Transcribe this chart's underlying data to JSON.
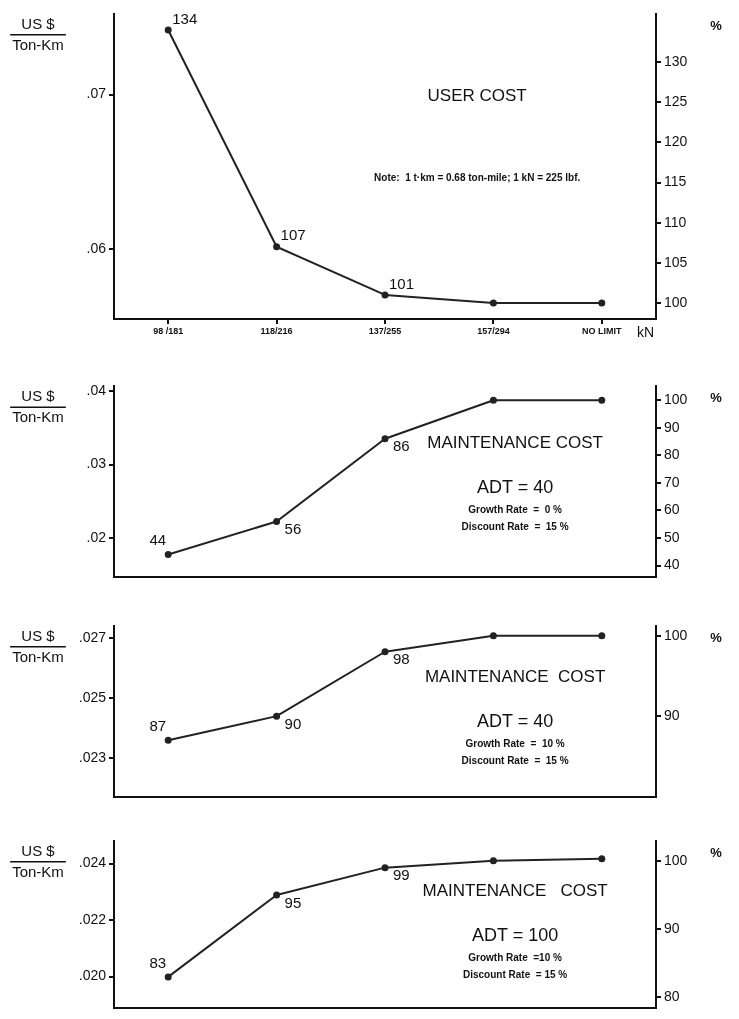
{
  "chart_data": [
    {
      "type": "line",
      "title": "USER COST",
      "ylabel": "US $\nTon-Km",
      "y2label": "%",
      "xlabel": "kN",
      "marker": "circle",
      "categories": [
        "98 /181",
        "118/216",
        "137/255",
        "157/294",
        "NO LIMIT"
      ],
      "series": [
        {
          "color": "#222222",
          "axis": "y2",
          "values": [
            134,
            107,
            101,
            100,
            100
          ],
          "value_labels": [
            "134",
            "107",
            "101",
            null,
            null
          ]
        }
      ],
      "ylim": [
        0.0555,
        0.0752
      ],
      "yticks": [
        {
          "value": 0.06,
          "label": ".06"
        },
        {
          "value": 0.07,
          "label": ".07"
        }
      ],
      "y2lim": [
        98,
        136
      ],
      "y2ticks": [
        100,
        105,
        110,
        115,
        120,
        125,
        130
      ],
      "annotations": [
        "Note:  1 t·km = 0.68 ton-mile; 1 kN = 225 lbf."
      ]
    },
    {
      "type": "line",
      "title": "MAINTENANCE COST",
      "ylabel": "US $\nTon-Km",
      "y2label": "%",
      "marker": "circle",
      "categories": [
        null,
        null,
        null,
        null,
        null
      ],
      "series": [
        {
          "color": "#222222",
          "axis": "y2",
          "values": [
            44,
            56,
            86,
            100,
            100
          ],
          "value_labels": [
            "44",
            "56",
            "86",
            null,
            null
          ]
        }
      ],
      "ylim": [
        0.0148,
        0.0406
      ],
      "yticks": [
        {
          "value": 0.02,
          "label": ".02"
        },
        {
          "value": 0.03,
          "label": ".03"
        },
        {
          "value": 0.04,
          "label": ".04"
        }
      ],
      "y2lim": [
        36,
        105
      ],
      "y2ticks": [
        40,
        50,
        60,
        70,
        80,
        90,
        100
      ],
      "annotations": [
        "ADT = 40",
        "Growth Rate  =  0 %",
        "Discount Rate  =  15 %"
      ]
    },
    {
      "type": "line",
      "title": "MAINTENANCE  COST",
      "ylabel": "US $\nTon-Km",
      "y2label": "%",
      "marker": "circle",
      "categories": [
        null,
        null,
        null,
        null,
        null
      ],
      "series": [
        {
          "color": "#222222",
          "axis": "y2",
          "values": [
            87,
            90,
            98,
            100,
            100
          ],
          "value_labels": [
            "87",
            "90",
            "98",
            null,
            null
          ]
        }
      ],
      "ylim": [
        0.0217,
        0.0274
      ],
      "yticks": [
        {
          "value": 0.023,
          "label": ".023"
        },
        {
          "value": 0.025,
          "label": ".025"
        },
        {
          "value": 0.027,
          "label": ".027"
        }
      ],
      "y2lim": [
        80,
        101.2
      ],
      "y2ticks": [
        90,
        100
      ],
      "annotations": [
        "ADT = 40",
        "Growth Rate  =  10 %",
        "Discount Rate  =  15 %"
      ]
    },
    {
      "type": "line",
      "title": "MAINTENANCE   COST",
      "ylabel": "US $\nTon-Km",
      "y2label": "%",
      "marker": "circle",
      "categories": [
        null,
        null,
        null,
        null,
        null
      ],
      "series": [
        {
          "color": "#222222",
          "axis": "y2",
          "values": [
            83,
            95,
            99,
            100,
            100.3
          ],
          "value_labels": [
            "83",
            "95",
            "99",
            null,
            null
          ]
        }
      ],
      "ylim": [
        0.0189,
        0.0248
      ],
      "yticks": [
        {
          "value": 0.02,
          "label": ".020"
        },
        {
          "value": 0.022,
          "label": ".022"
        },
        {
          "value": 0.024,
          "label": ".024"
        }
      ],
      "y2lim": [
        78.5,
        102.9
      ],
      "y2ticks": [
        80,
        90,
        100
      ],
      "annotations": [
        "ADT = 100",
        "Growth Rate  =10 %",
        "Discount Rate  = 15 %"
      ]
    }
  ]
}
